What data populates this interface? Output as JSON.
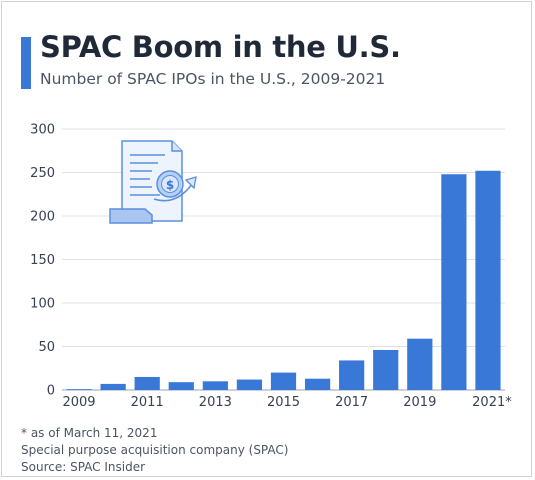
{
  "header": {
    "title": "SPAC Boom in the U.S.",
    "subtitle": "Number of SPAC IPOs in the U.S., 2009-2021",
    "accent_color": "#3a78d8"
  },
  "footnotes": {
    "note": "* as of March 11, 2021",
    "definition": "Special purpose acquisition company (SPAC)",
    "source": "Source: SPAC Insider"
  },
  "illustration": {
    "icon": "document-dollar-icon"
  },
  "chart_data": {
    "type": "bar",
    "title": "SPAC Boom in the U.S.",
    "subtitle": "Number of SPAC IPOs in the U.S., 2009-2021",
    "categories": [
      "2009",
      "2010",
      "2011",
      "2012",
      "2013",
      "2014",
      "2015",
      "2016",
      "2017",
      "2018",
      "2019",
      "2020",
      "2021*"
    ],
    "x_tick_labels": [
      "2009",
      "",
      "2011",
      "",
      "2013",
      "",
      "2015",
      "",
      "2017",
      "",
      "2019",
      "",
      "2021*"
    ],
    "values": [
      1,
      7,
      15,
      9,
      10,
      12,
      20,
      13,
      34,
      46,
      59,
      248,
      252
    ],
    "ylim": [
      0,
      300
    ],
    "yticks": [
      0,
      50,
      100,
      150,
      200,
      250,
      300
    ],
    "grid": true,
    "bar_color": "#3a78d8",
    "xlabel": "",
    "ylabel": ""
  }
}
